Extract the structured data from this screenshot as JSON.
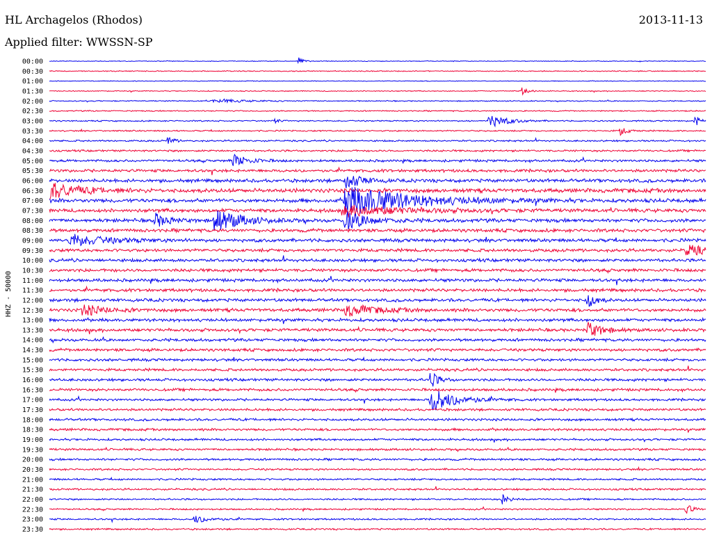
{
  "header": {
    "station": "HL Archagelos (Rhodos)",
    "date": "2013-11-13",
    "filter": "Applied filter: WWSSN-SP"
  },
  "chart_data": {
    "type": "line",
    "ylabel": "HHZ - 50000",
    "row_labels": [
      "00:00",
      "00:30",
      "01:00",
      "01:30",
      "02:00",
      "02:30",
      "03:00",
      "03:30",
      "04:00",
      "04:30",
      "05:00",
      "05:30",
      "06:00",
      "06:30",
      "07:00",
      "07:30",
      "08:00",
      "08:30",
      "09:00",
      "09:30",
      "10:00",
      "10:30",
      "11:00",
      "11:30",
      "12:00",
      "12:30",
      "13:00",
      "13:30",
      "14:00",
      "14:30",
      "15:00",
      "15:30",
      "16:00",
      "16:30",
      "17:00",
      "17:30",
      "18:00",
      "18:30",
      "19:00",
      "19:30",
      "20:00",
      "20:30",
      "21:00",
      "21:30",
      "22:00",
      "22:30",
      "23:00",
      "23:30"
    ],
    "series_colors": [
      "#0000ee",
      "#ee0033"
    ],
    "row_noise": [
      0.6,
      0.8,
      0.6,
      0.8,
      0.9,
      1.0,
      1.1,
      1.2,
      1.4,
      1.6,
      2.0,
      2.4,
      2.8,
      3.4,
      3.2,
      3.0,
      3.0,
      2.8,
      2.8,
      2.6,
      2.6,
      2.6,
      2.6,
      2.6,
      2.6,
      2.8,
      2.6,
      2.6,
      2.4,
      2.4,
      2.2,
      2.2,
      2.2,
      2.2,
      2.0,
      2.0,
      2.0,
      2.0,
      1.8,
      1.8,
      1.8,
      1.6,
      1.6,
      1.6,
      1.4,
      1.4,
      1.4,
      1.4
    ],
    "events": [
      {
        "row": 0,
        "t": 0.38,
        "amp": 6,
        "dur": 0.006
      },
      {
        "row": 3,
        "t": 0.72,
        "amp": 5,
        "dur": 0.01
      },
      {
        "row": 4,
        "t": 0.25,
        "amp": 3,
        "dur": 0.04
      },
      {
        "row": 6,
        "t": 0.34,
        "amp": 5,
        "dur": 0.006
      },
      {
        "row": 6,
        "t": 0.67,
        "amp": 10,
        "dur": 0.025
      },
      {
        "row": 6,
        "t": 0.984,
        "amp": 9,
        "dur": 0.006
      },
      {
        "row": 7,
        "t": 0.87,
        "amp": 6,
        "dur": 0.01
      },
      {
        "row": 8,
        "t": 0.18,
        "amp": 6,
        "dur": 0.008
      },
      {
        "row": 10,
        "t": 0.28,
        "amp": 10,
        "dur": 0.02
      },
      {
        "row": 12,
        "t": 0.45,
        "amp": 14,
        "dur": 0.02
      },
      {
        "row": 13,
        "t": 0.0,
        "amp": 12,
        "dur": 0.04
      },
      {
        "row": 14,
        "t": 0.45,
        "amp": 22,
        "dur": 0.09
      },
      {
        "row": 15,
        "t": 0.45,
        "amp": 8,
        "dur": 0.08
      },
      {
        "row": 16,
        "t": 0.25,
        "amp": 18,
        "dur": 0.035
      },
      {
        "row": 16,
        "t": 0.16,
        "amp": 10,
        "dur": 0.02
      },
      {
        "row": 16,
        "t": 0.45,
        "amp": 14,
        "dur": 0.03
      },
      {
        "row": 18,
        "t": 0.03,
        "amp": 9,
        "dur": 0.05
      },
      {
        "row": 19,
        "t": 0.97,
        "amp": 8,
        "dur": 0.03
      },
      {
        "row": 24,
        "t": 0.82,
        "amp": 14,
        "dur": 0.01
      },
      {
        "row": 25,
        "t": 0.05,
        "amp": 8,
        "dur": 0.03
      },
      {
        "row": 25,
        "t": 0.45,
        "amp": 9,
        "dur": 0.04
      },
      {
        "row": 27,
        "t": 0.82,
        "amp": 12,
        "dur": 0.02
      },
      {
        "row": 32,
        "t": 0.58,
        "amp": 14,
        "dur": 0.01
      },
      {
        "row": 34,
        "t": 0.58,
        "amp": 18,
        "dur": 0.035
      },
      {
        "row": 44,
        "t": 0.69,
        "amp": 7,
        "dur": 0.01
      },
      {
        "row": 45,
        "t": 0.97,
        "amp": 8,
        "dur": 0.008
      },
      {
        "row": 46,
        "t": 0.22,
        "amp": 6,
        "dur": 0.02
      }
    ]
  }
}
